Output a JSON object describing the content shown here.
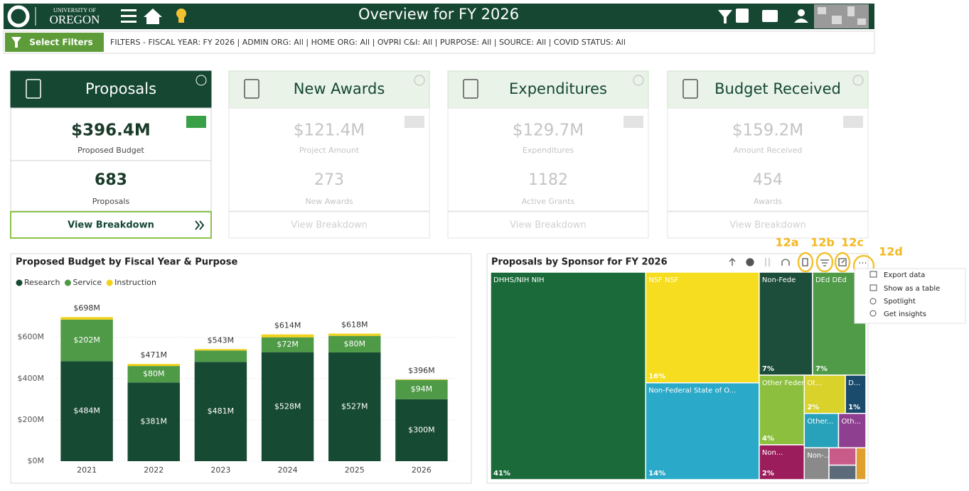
{
  "header": {
    "logo_top": "UNIVERSITY OF",
    "logo": "OREGON",
    "title": "Overview for FY 2026"
  },
  "filters": {
    "button": "Select Filters",
    "text": "FILTERS - FISCAL YEAR: FY 2026 | ADMIN ORG: All | HOME ORG: All | OVPRI C&I: All | PURPOSE: All | SOURCE: All | COVID STATUS: All"
  },
  "cards": [
    {
      "title": "Proposals",
      "value": "$396.4M",
      "value_label": "Proposed Budget",
      "count": "683",
      "count_label": "Proposals",
      "action": "View Breakdown",
      "active": true
    },
    {
      "title": "New Awards",
      "value": "$121.4M",
      "value_label": "Project Amount",
      "count": "273",
      "count_label": "New Awards",
      "action": "View Breakdown",
      "active": false
    },
    {
      "title": "Expenditures",
      "value": "$129.7M",
      "value_label": "Expenditures",
      "count": "1182",
      "count_label": "Active Grants",
      "action": "View Breakdown",
      "active": false
    },
    {
      "title": "Budget Received",
      "value": "$159.2M",
      "value_label": "Amount Received",
      "count": "454",
      "count_label": "Awards",
      "action": "View Breakdown",
      "active": false
    }
  ],
  "chart_data": [
    {
      "type": "bar",
      "stacked": true,
      "title": "Proposed Budget by Fiscal Year & Purpose",
      "categories": [
        "2021",
        "2022",
        "2023",
        "2024",
        "2025",
        "2026"
      ],
      "series": [
        {
          "name": "Research",
          "color": "#174a33",
          "values": [
            484,
            381,
            481,
            528,
            527,
            300
          ],
          "value_labels": [
            "$484M",
            "$381M",
            "$481M",
            "$528M",
            "$527M",
            "$300M"
          ]
        },
        {
          "name": "Service",
          "color": "#4e9a47",
          "values": [
            202,
            80,
            55,
            72,
            80,
            94
          ],
          "value_labels": [
            "$202M",
            "$80M",
            null,
            "$72M",
            "$80M",
            "$94M"
          ]
        },
        {
          "name": "Instruction",
          "color": "#f2d21b",
          "values": [
            12,
            10,
            7,
            14,
            11,
            2
          ],
          "value_labels": [
            null,
            null,
            null,
            null,
            null,
            null
          ]
        }
      ],
      "totals": {
        "values": [
          698,
          471,
          543,
          614,
          618,
          396
        ],
        "value_labels": [
          "$698M",
          "$471M",
          "$543M",
          "$614M",
          "$618M",
          "$396M"
        ]
      },
      "ylim": [
        0,
        840
      ],
      "yticks": [
        {
          "value": 0,
          "label": "$0M"
        },
        {
          "value": 200,
          "label": "$200M"
        },
        {
          "value": 400,
          "label": "$400M"
        },
        {
          "value": 600,
          "label": "$600M"
        }
      ],
      "grid": true,
      "legend": "top-left"
    },
    {
      "type": "treemap",
      "title": "Proposals by Sponsor for FY 2026",
      "categories": [
        "DHHS/NIH NIH",
        "NSF NSF",
        "Non-Federal State of O...",
        "Non-Fede",
        "DEd DEd",
        "Other Federal D...",
        "Non...",
        "Ot...",
        "D...",
        "Other...",
        "Oth...",
        "Non-...",
        null,
        null,
        null
      ],
      "values": [
        41,
        16,
        14,
        7,
        7,
        4,
        2,
        2,
        1,
        1.5,
        1.2,
        1,
        0.6,
        0.5,
        0.4
      ],
      "value_labels": [
        "41%",
        "16%",
        "14%",
        "7%",
        "7%",
        "4%",
        "2%",
        "2%",
        "1%",
        null,
        null,
        null,
        null,
        null,
        null
      ],
      "colors": [
        "#1b6b3a",
        "#f6dd1f",
        "#2aa9c9",
        "#1d4d3b",
        "#4f9b48",
        "#8cbf3e",
        "#9c1d5c",
        "#d8d22b",
        "#1a4b6c",
        "#28a1ba",
        "#8e3f8f",
        "#8a8a8a",
        "#c95b8a",
        "#5b6b7a",
        "#e0a030"
      ]
    }
  ],
  "annotations": [
    "12a",
    "12b",
    "12c",
    "12d"
  ],
  "menu": [
    "Export data",
    "Show as a table",
    "Spotlight",
    "Get insights"
  ]
}
